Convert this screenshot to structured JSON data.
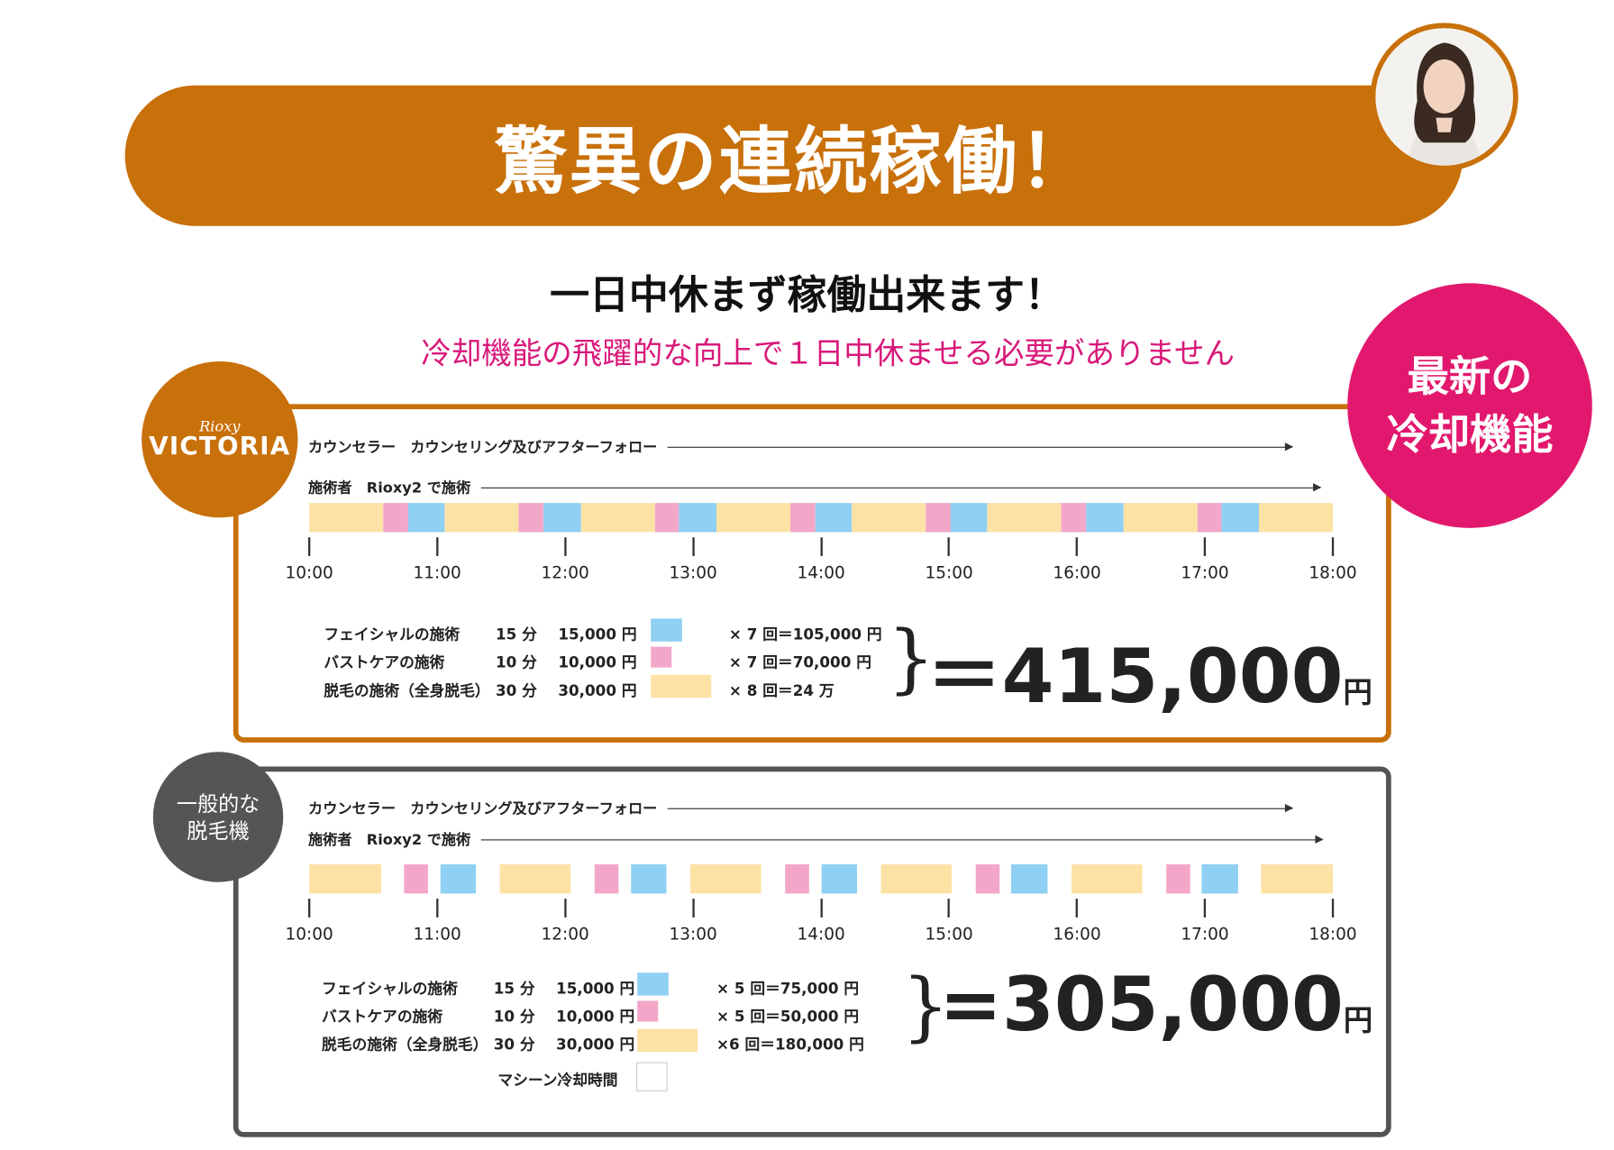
{
  "header": {
    "title": "驚異の連続稼働！",
    "subtitle": "一日中休まず稼働出来ます！",
    "tagline": "冷却機能の飛躍的な向上で１日中休ませる必要がありません"
  },
  "badges": {
    "victoria_small": "Rioxy",
    "victoria_large": "VICTORIA",
    "cooling_line1": "最新の",
    "cooling_line2": "冷却機能",
    "general_line1": "一般的な",
    "general_line2": "脱毛機"
  },
  "colors": {
    "accent": "#c8700a",
    "pink_accent": "#e2186e",
    "facial": "#8fd0f3",
    "bust": "#f2a7c9",
    "hair": "#fde2a6",
    "dark": "#555555"
  },
  "time_ticks": [
    "10:00",
    "11:00",
    "12:00",
    "13:00",
    "14:00",
    "15:00",
    "16:00",
    "17:00",
    "18:00"
  ],
  "victoria": {
    "lane_counselor": "カウンセラー　カウンセリング及びアフターフォロー",
    "lane_operator": "施術者　Rioxy2 で施術",
    "schedule_minutes": [
      [
        "hair",
        30
      ],
      [
        "bust",
        10
      ],
      [
        "facial",
        15
      ],
      [
        "hair",
        30
      ],
      [
        "bust",
        10
      ],
      [
        "facial",
        15
      ],
      [
        "hair",
        30
      ],
      [
        "bust",
        10
      ],
      [
        "facial",
        15
      ],
      [
        "hair",
        30
      ],
      [
        "bust",
        10
      ],
      [
        "facial",
        15
      ],
      [
        "hair",
        30
      ],
      [
        "bust",
        10
      ],
      [
        "facial",
        15
      ],
      [
        "hair",
        30
      ],
      [
        "bust",
        10
      ],
      [
        "facial",
        15
      ],
      [
        "hair",
        30
      ],
      [
        "bust",
        10
      ],
      [
        "facial",
        15
      ],
      [
        "hair",
        30
      ]
    ],
    "legend": [
      {
        "name": "フェイシャルの施術",
        "duration": "15 分",
        "price": "15,000 円",
        "calc": "× 7 回＝105,000 円",
        "type": "facial"
      },
      {
        "name": "バストケアの施術",
        "duration": "10 分",
        "price": "10,000 円",
        "calc": "× 7 回＝70,000 円",
        "type": "bust"
      },
      {
        "name": "脱毛の施術（全身脱毛）",
        "duration": "30 分",
        "price": "30,000 円",
        "calc": "× 8 回＝24 万",
        "type": "hair"
      }
    ],
    "total": "＝415,000",
    "total_unit": "円"
  },
  "general": {
    "lane_counselor": "カウンセラー　カウンセリング及びアフターフォロー",
    "lane_operator": "施術者　Rioxy2 で施術",
    "schedule_minutes": [
      [
        "hair",
        30
      ],
      [
        "cool",
        10
      ],
      [
        "bust",
        10
      ],
      [
        "cool",
        5
      ],
      [
        "facial",
        15
      ],
      [
        "cool",
        10
      ],
      [
        "hair",
        30
      ],
      [
        "cool",
        10
      ],
      [
        "bust",
        10
      ],
      [
        "cool",
        5
      ],
      [
        "facial",
        15
      ],
      [
        "cool",
        10
      ],
      [
        "hair",
        30
      ],
      [
        "cool",
        10
      ],
      [
        "bust",
        10
      ],
      [
        "cool",
        5
      ],
      [
        "facial",
        15
      ],
      [
        "cool",
        10
      ],
      [
        "hair",
        30
      ],
      [
        "cool",
        10
      ],
      [
        "bust",
        10
      ],
      [
        "cool",
        5
      ],
      [
        "facial",
        15
      ],
      [
        "cool",
        10
      ],
      [
        "hair",
        30
      ],
      [
        "cool",
        10
      ],
      [
        "bust",
        10
      ],
      [
        "cool",
        5
      ],
      [
        "facial",
        15
      ],
      [
        "cool",
        10
      ],
      [
        "hair",
        30
      ]
    ],
    "legend": [
      {
        "name": "フェイシャルの施術",
        "duration": "15 分",
        "price": "15,000 円",
        "calc": "× 5 回＝75,000 円",
        "type": "facial"
      },
      {
        "name": "バストケアの施術",
        "duration": "10 分",
        "price": "10,000 円",
        "calc": "× 5 回＝50,000 円",
        "type": "bust"
      },
      {
        "name": "脱毛の施術（全身脱毛）",
        "duration": "30 分",
        "price": "30,000 円",
        "calc": "×6 回＝180,000 円",
        "type": "hair"
      }
    ],
    "cooling_label": "マシーン冷却時間",
    "total": "=305,000",
    "total_unit": "円"
  }
}
